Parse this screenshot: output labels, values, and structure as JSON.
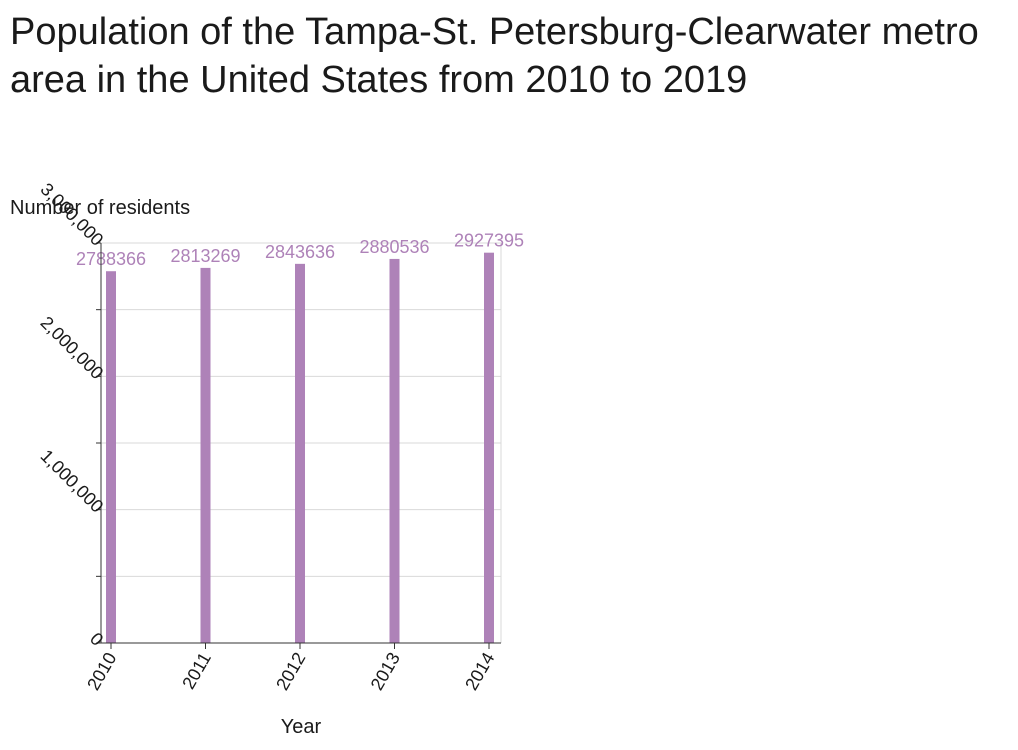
{
  "chart_data": {
    "type": "bar",
    "title": "Population of the Tampa-St. Petersburg-Clearwater metro area in the United States from 2010 to 2019",
    "xlabel": "Year",
    "ylabel": "Number of residents",
    "categories": [
      "2010",
      "2011",
      "2012",
      "2013",
      "2014"
    ],
    "values": [
      2788366,
      2813269,
      2843636,
      2880536,
      2927395
    ],
    "data_labels": [
      "2788366",
      "2813269",
      "2843636",
      "2880536",
      "2927395"
    ],
    "ylim": [
      0,
      3000000
    ],
    "yticks": [
      0,
      500000,
      1000000,
      1500000,
      2000000,
      2500000,
      3000000
    ],
    "ytick_labels": [
      "0",
      "",
      "1,000,000",
      "",
      "2,000,000",
      "",
      "3,000,000"
    ],
    "grid": true,
    "colors": {
      "bar": "#ae82b8",
      "label": "#ae82b8",
      "grid": "#d9d9d9",
      "axis": "#333333"
    }
  }
}
